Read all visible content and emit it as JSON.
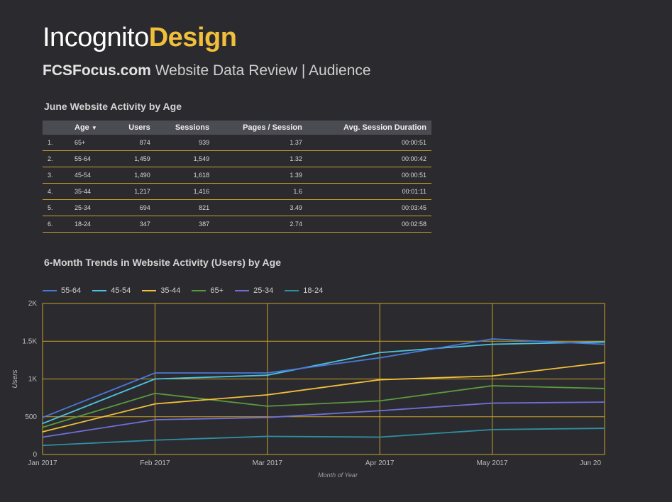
{
  "logo": {
    "part1": "Incognito",
    "part2": "Design"
  },
  "subtitle": {
    "site": "FCSFocus.com",
    "rest": " Website Data Review | Audience"
  },
  "table_title": "June Website Activity by Age",
  "table": {
    "headers": [
      "Age",
      "Users",
      "Sessions",
      "Pages / Session",
      "Avg. Session Duration"
    ],
    "sort_icon": "sort-desc-icon",
    "rows": [
      {
        "idx": "1.",
        "age": "65+",
        "users": "874",
        "sessions": "939",
        "pps": "1.37",
        "dur": "00:00:51"
      },
      {
        "idx": "2.",
        "age": "55-64",
        "users": "1,459",
        "sessions": "1,549",
        "pps": "1.32",
        "dur": "00:00:42"
      },
      {
        "idx": "3.",
        "age": "45-54",
        "users": "1,490",
        "sessions": "1,618",
        "pps": "1.39",
        "dur": "00:00:51"
      },
      {
        "idx": "4.",
        "age": "35-44",
        "users": "1,217",
        "sessions": "1,416",
        "pps": "1.6",
        "dur": "00:01:11"
      },
      {
        "idx": "5.",
        "age": "25-34",
        "users": "694",
        "sessions": "821",
        "pps": "3.49",
        "dur": "00:03:45"
      },
      {
        "idx": "6.",
        "age": "18-24",
        "users": "347",
        "sessions": "387",
        "pps": "2.74",
        "dur": "00:02:58"
      }
    ]
  },
  "chart_data": {
    "type": "line",
    "title": "6-Month Trends in Website Activity (Users) by Age",
    "xlabel": "Month of Year",
    "ylabel": "Users",
    "x": [
      "Jan 2017",
      "Feb 2017",
      "Mar 2017",
      "Apr 2017",
      "May 2017",
      "Jun 20"
    ],
    "ylim": [
      0,
      2000
    ],
    "yticks": [
      0,
      500,
      1000,
      1500,
      2000
    ],
    "ytick_labels": [
      "0",
      "500",
      "1K",
      "1.5K",
      "2K"
    ],
    "grid": true,
    "legend": "top-left",
    "series": [
      {
        "name": "55-64",
        "color": "#4a78d6",
        "values": [
          490,
          1080,
          1080,
          1280,
          1530,
          1459
        ]
      },
      {
        "name": "45-54",
        "color": "#4cc3e0",
        "values": [
          410,
          1000,
          1050,
          1350,
          1460,
          1490
        ]
      },
      {
        "name": "35-44",
        "color": "#f2bf3a",
        "values": [
          300,
          670,
          790,
          990,
          1040,
          1217
        ]
      },
      {
        "name": "65+",
        "color": "#5a9a3e",
        "values": [
          360,
          810,
          640,
          710,
          910,
          874
        ]
      },
      {
        "name": "25-34",
        "color": "#6f6fd8",
        "values": [
          230,
          460,
          490,
          580,
          680,
          694
        ]
      },
      {
        "name": "18-24",
        "color": "#2f8fa2",
        "values": [
          120,
          190,
          240,
          230,
          330,
          347
        ]
      }
    ],
    "grid_color": "#c9a227",
    "axis_color": "#9a9a9a"
  }
}
